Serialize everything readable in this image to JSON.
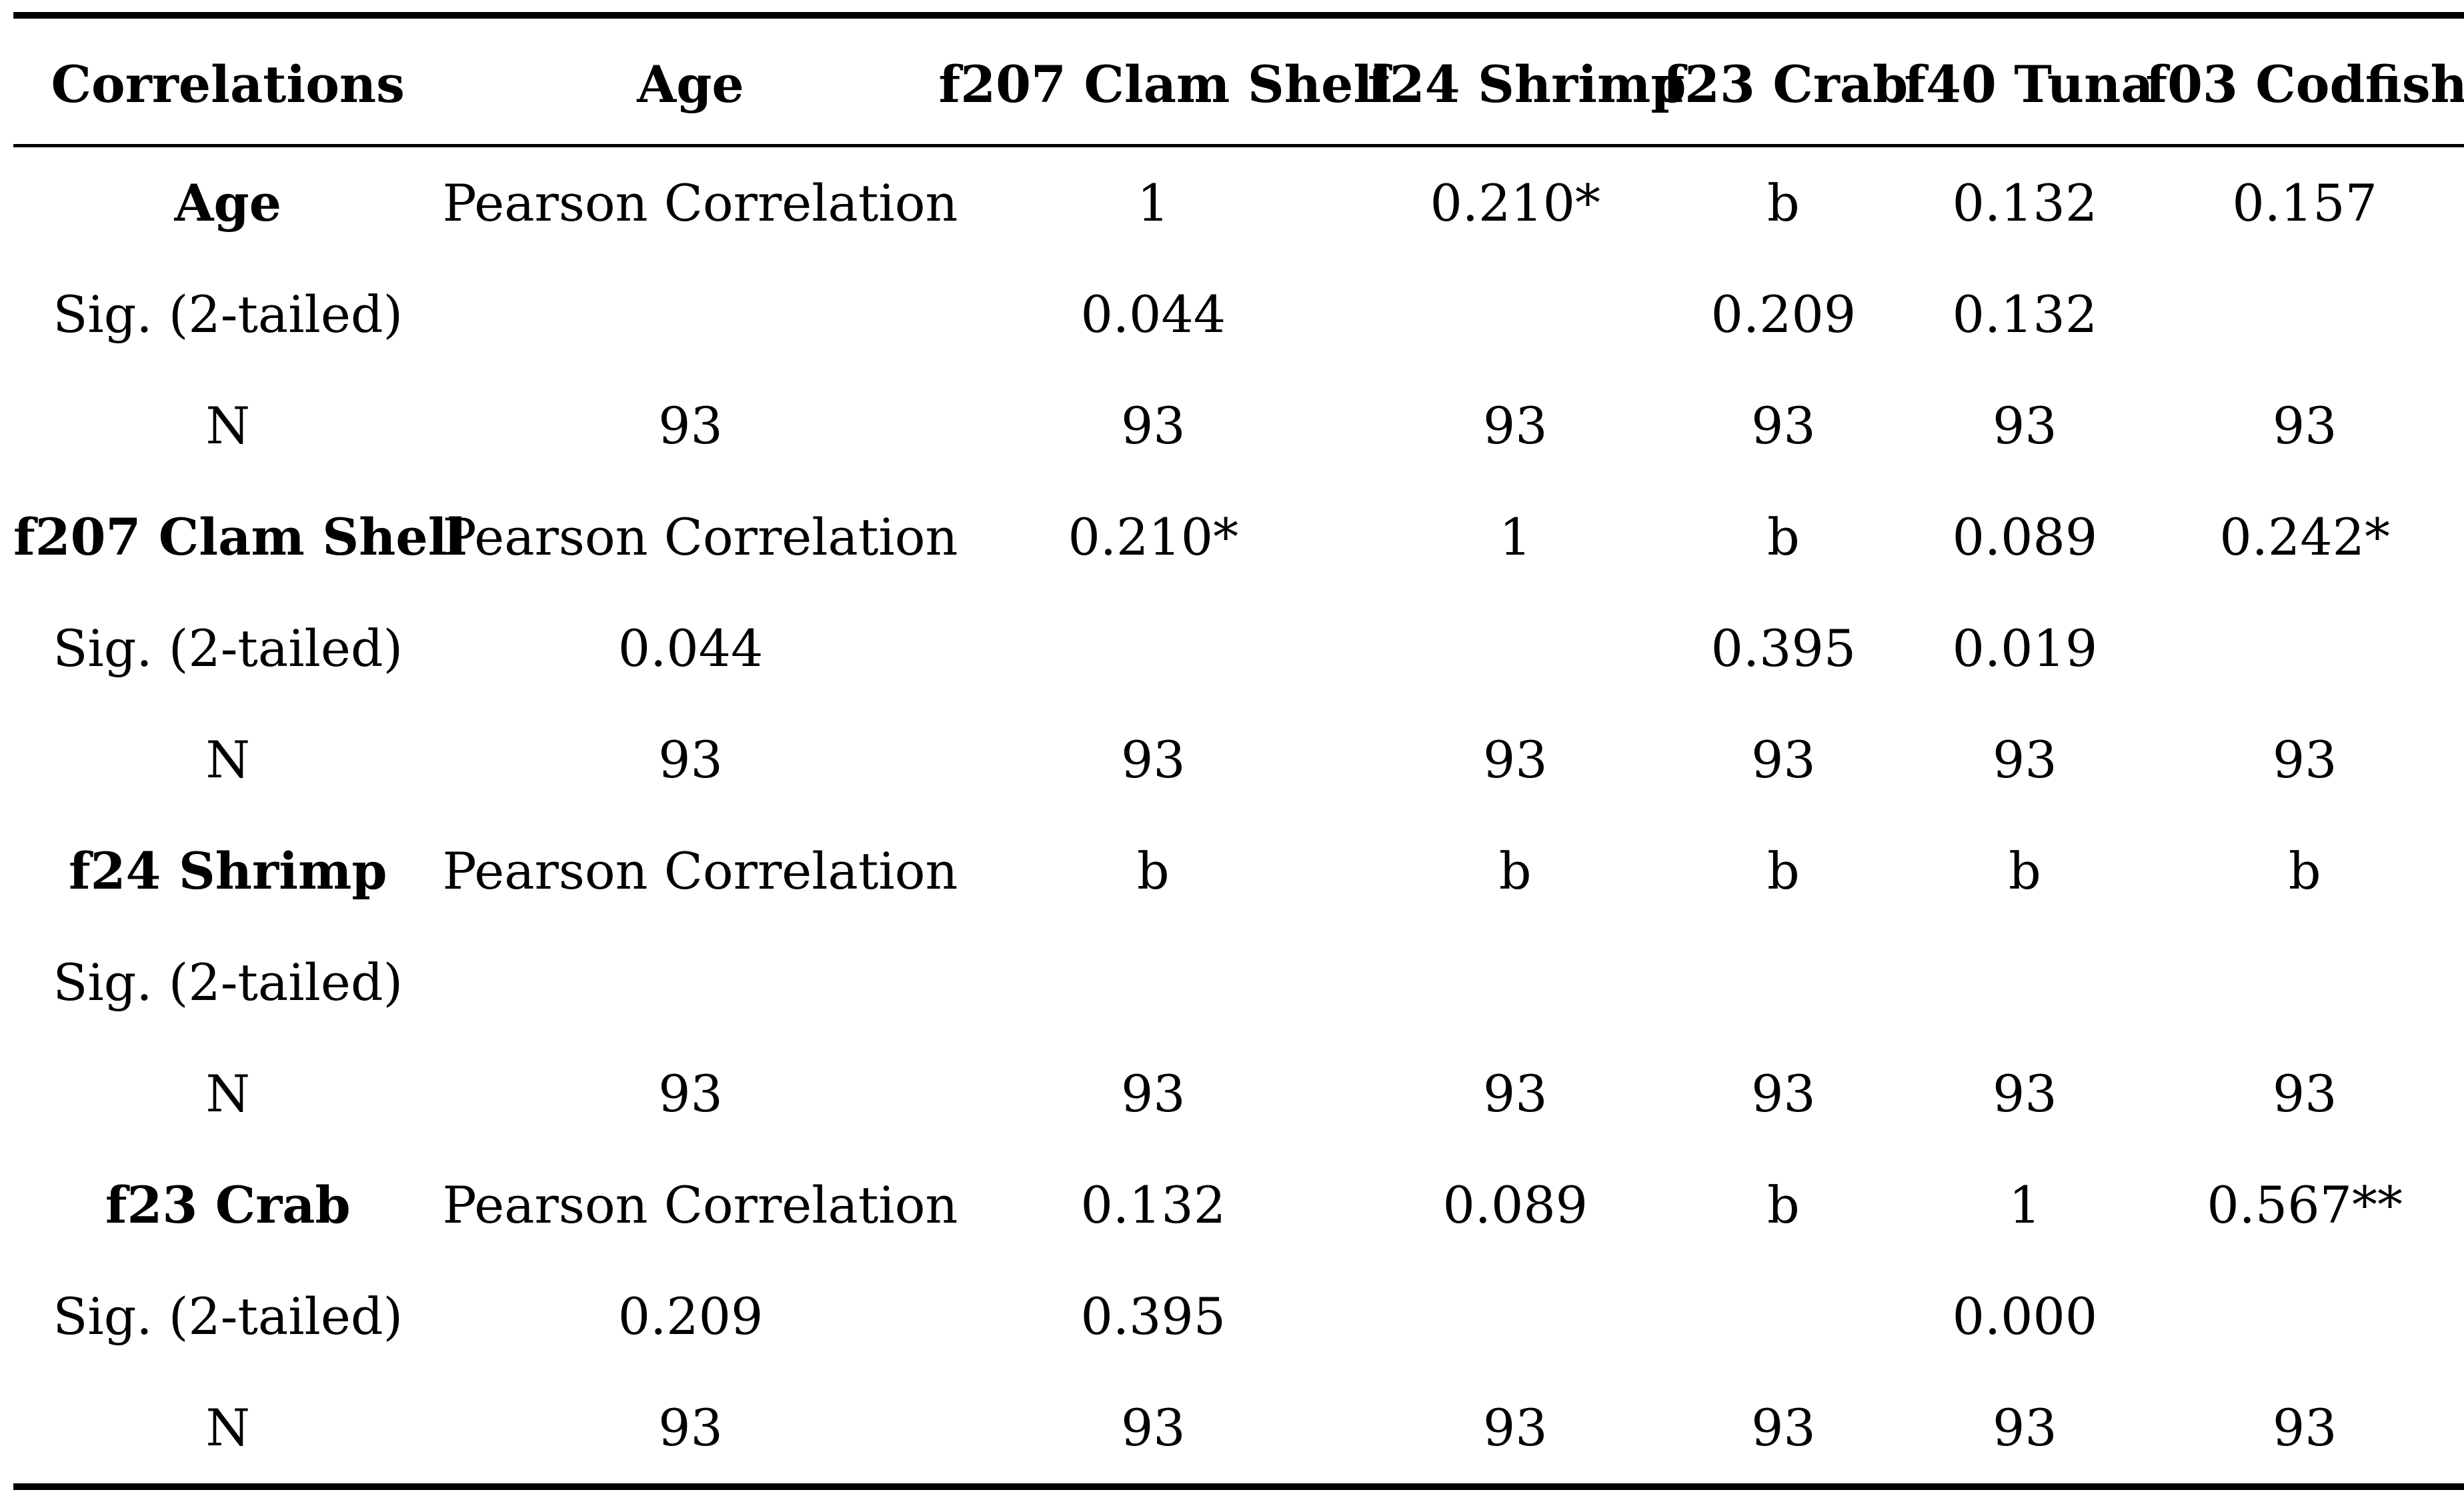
{
  "table": {
    "headers": [
      "Correlations",
      "Age",
      "f207 Clam Shell",
      "f24 Shrimp",
      "f23 Crab",
      "f40 Tuna",
      "f03 Codfish"
    ],
    "rows": [
      [
        "Age",
        "Pearson Correlation",
        "1",
        "0.210*",
        "b",
        "0.132",
        "0.157"
      ],
      [
        "Sig. (2-tailed)",
        "",
        "0.044",
        "",
        "0.209",
        "0.132",
        ""
      ],
      [
        "N",
        "93",
        "93",
        "93",
        "93",
        "93",
        "93"
      ],
      [
        "f207 Clam Shell",
        "Pearson Correlation",
        "0.210*",
        "1",
        "b",
        "0.089",
        "0.242*"
      ],
      [
        "Sig. (2-tailed)",
        "0.044",
        "",
        "",
        "0.395",
        "0.019",
        ""
      ],
      [
        "N",
        "93",
        "93",
        "93",
        "93",
        "93",
        "93"
      ],
      [
        "f24 Shrimp",
        "Pearson Correlation",
        "b",
        "b",
        "b",
        "b",
        "b"
      ],
      [
        "Sig. (2-tailed)",
        "",
        "",
        "",
        "",
        "",
        ""
      ],
      [
        "N",
        "93",
        "93",
        "93",
        "93",
        "93",
        "93"
      ],
      [
        "f23 Crab",
        "Pearson Correlation",
        "0.132",
        "0.089",
        "b",
        "1",
        "0.567**"
      ],
      [
        "Sig. (2-tailed)",
        "0.209",
        "0.395",
        "",
        "",
        "0.000",
        ""
      ],
      [
        "N",
        "93",
        "93",
        "93",
        "93",
        "93",
        "93"
      ]
    ]
  }
}
